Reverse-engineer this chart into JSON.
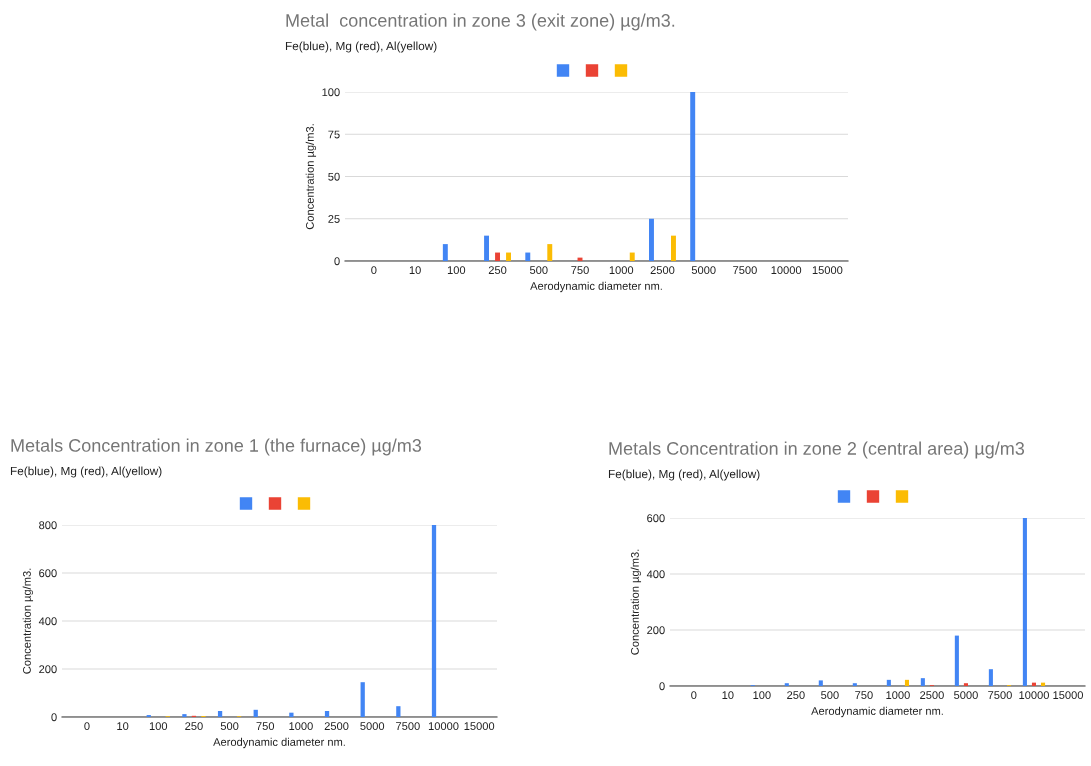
{
  "chart_data": [
    {
      "type": "bar",
      "title": "Metal  concentration in zone 3 (exit zone) µg/m3.",
      "subtitle": "Fe(blue), Mg (red), Al(yellow)",
      "xlabel": "Aerodynamic diameter nm.",
      "ylabel": "Concentration µg/m3.",
      "categories": [
        "0",
        "10",
        "100",
        "250",
        "500",
        "750",
        "1000",
        "2500",
        "5000",
        "7500",
        "10000",
        "15000"
      ],
      "series": [
        {
          "color": "#4285f4",
          "values": [
            0,
            0,
            10,
            15,
            5,
            0,
            0,
            25,
            100,
            0,
            0,
            0
          ]
        },
        {
          "color": "#ea4335",
          "values": [
            0,
            0,
            0,
            5,
            0,
            2,
            0,
            0,
            0,
            0,
            0,
            0
          ]
        },
        {
          "color": "#fbbc04",
          "values": [
            0,
            0,
            0,
            5,
            10,
            0,
            5,
            15,
            0,
            0,
            0,
            0
          ]
        }
      ],
      "ylim": [
        0,
        100
      ],
      "yticks": [
        0,
        25,
        50,
        75,
        100
      ],
      "grid": "y"
    },
    {
      "type": "bar",
      "title": "Metals Concentration in zone 1 (the furnace) µg/m3",
      "subtitle": "Fe(blue), Mg (red), Al(yellow)",
      "xlabel": "Aerodynamic diameter nm.",
      "ylabel": "Concentration µg/m3.",
      "categories": [
        "0",
        "10",
        "100",
        "250",
        "500",
        "750",
        "1000",
        "2500",
        "5000",
        "7500",
        "10000",
        "15000"
      ],
      "series": [
        {
          "color": "#4285f4",
          "values": [
            0,
            0,
            8,
            12,
            25,
            30,
            18,
            25,
            145,
            45,
            800,
            0
          ]
        },
        {
          "color": "#ea4335",
          "values": [
            0,
            0,
            0,
            5,
            0,
            0,
            0,
            0,
            0,
            0,
            0,
            0
          ]
        },
        {
          "color": "#fbbc04",
          "values": [
            0,
            0,
            3,
            4,
            3,
            0,
            0,
            0,
            0,
            0,
            0,
            0
          ]
        }
      ],
      "ylim": [
        0,
        800
      ],
      "yticks": [
        0,
        200,
        400,
        600,
        800
      ],
      "grid": "y"
    },
    {
      "type": "bar",
      "title": "Metals Concentration in zone 2 (central area) µg/m3",
      "subtitle": "Fe(blue), Mg (red), Al(yellow)",
      "xlabel": "Aerodynamic diameter nm.",
      "ylabel": "Concentration µg/m3.",
      "categories": [
        "0",
        "10",
        "100",
        "250",
        "500",
        "750",
        "1000",
        "2500",
        "5000",
        "7500",
        "10000",
        "15000"
      ],
      "series": [
        {
          "color": "#4285f4",
          "values": [
            0,
            0,
            3,
            10,
            20,
            10,
            22,
            28,
            180,
            60,
            600,
            0
          ]
        },
        {
          "color": "#ea4335",
          "values": [
            0,
            0,
            0,
            0,
            0,
            0,
            0,
            3,
            10,
            0,
            12,
            0
          ]
        },
        {
          "color": "#fbbc04",
          "values": [
            0,
            0,
            0,
            0,
            0,
            0,
            22,
            0,
            0,
            3,
            12,
            0
          ]
        }
      ],
      "ylim": [
        0,
        600
      ],
      "yticks": [
        0,
        200,
        400,
        600
      ],
      "grid": "y"
    }
  ]
}
